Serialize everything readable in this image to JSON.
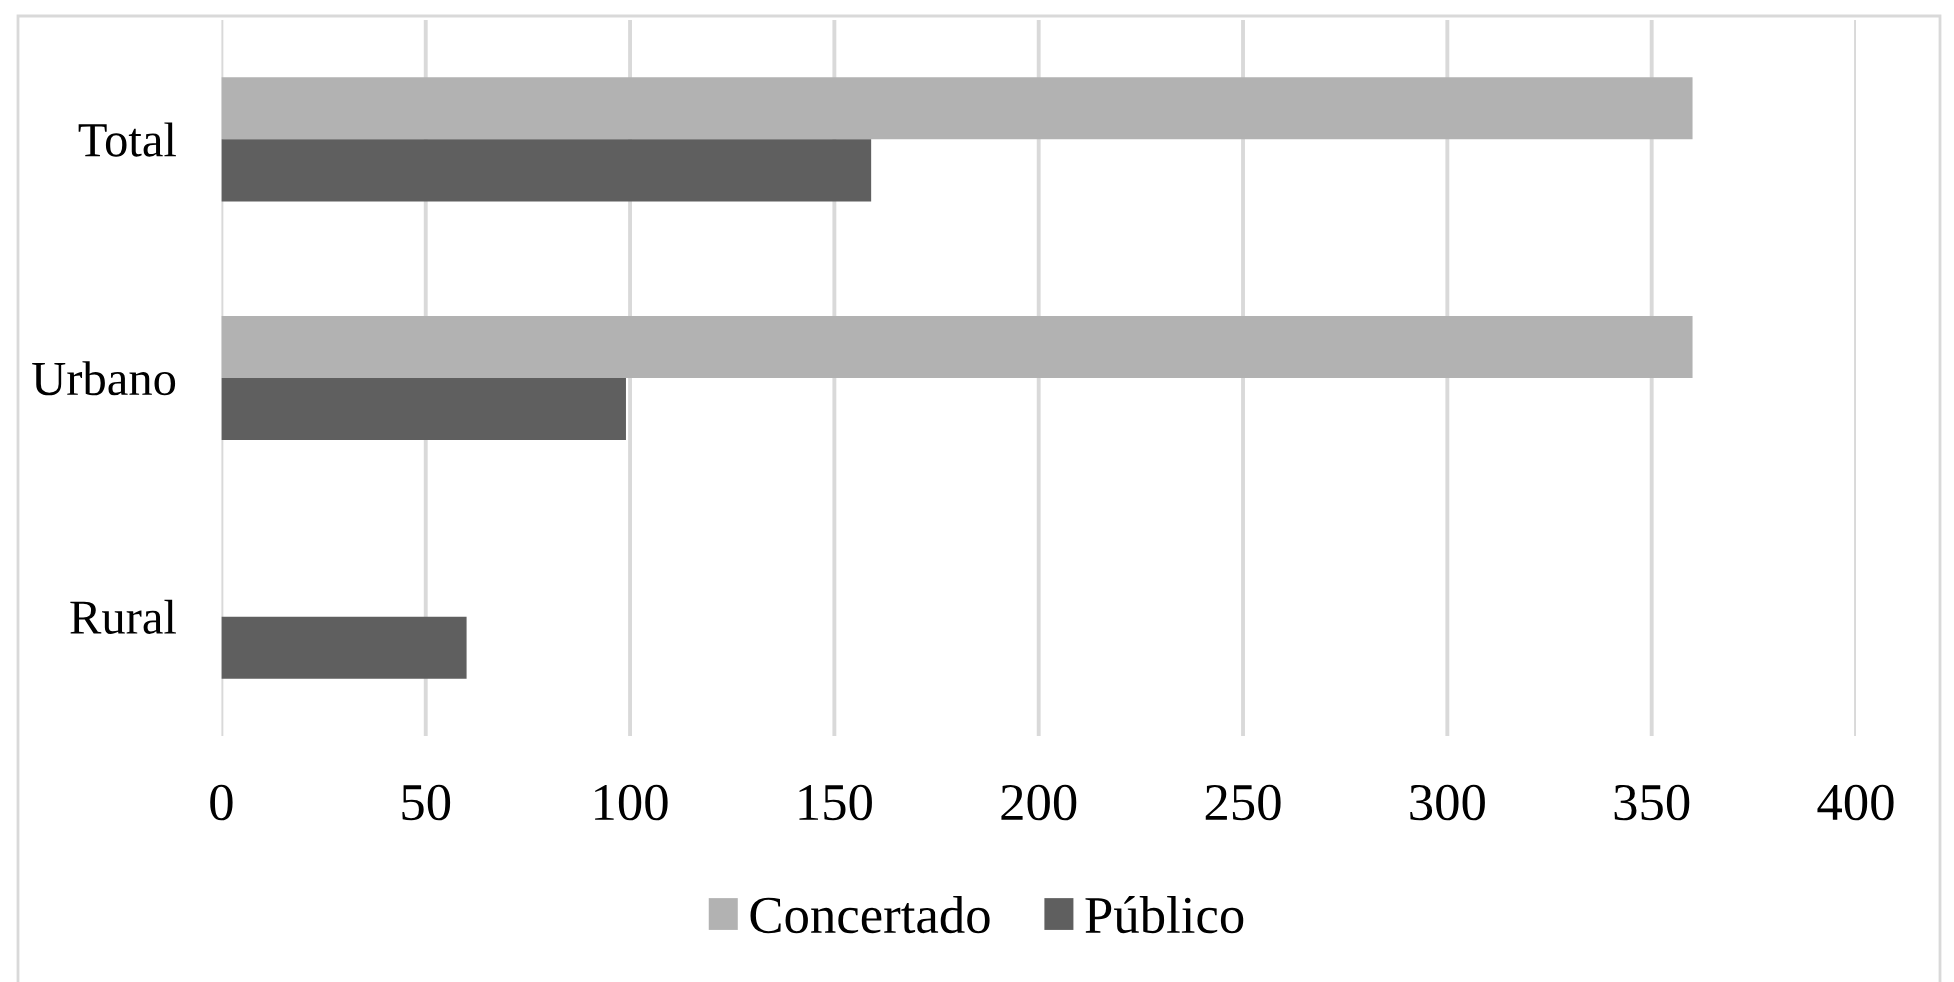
{
  "chart_data": {
    "type": "bar",
    "orientation": "horizontal",
    "categories": [
      "Total",
      "Urbano",
      "Rural"
    ],
    "series": [
      {
        "name": "Concertado",
        "color": "#b2b2b2",
        "values": [
          360,
          360,
          0
        ]
      },
      {
        "name": "Público",
        "color": "#5f5f5f",
        "values": [
          159,
          99,
          60
        ]
      }
    ],
    "xlim": [
      0,
      400
    ],
    "xticks": [
      0,
      50,
      100,
      150,
      200,
      250,
      300,
      350,
      400
    ],
    "grid": "x",
    "legend": "bottom"
  }
}
